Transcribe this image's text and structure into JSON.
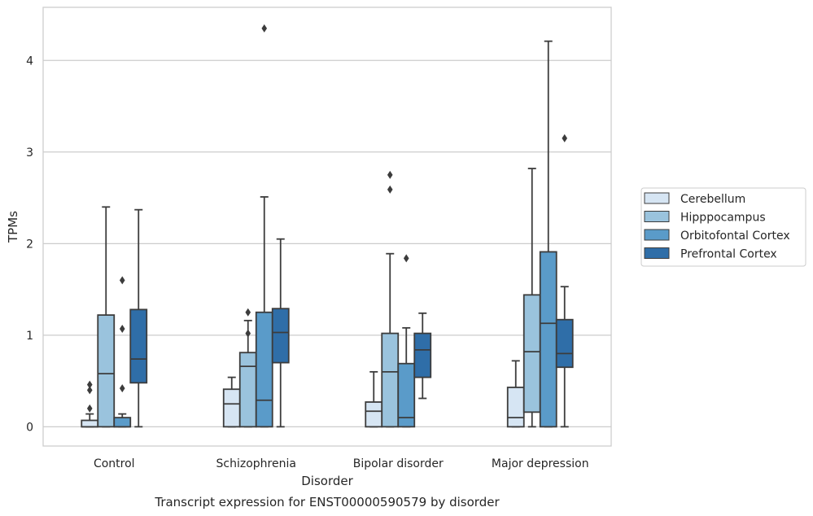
{
  "chart_data": {
    "type": "box",
    "xlabel": "Disorder",
    "ylabel": "TPMs",
    "caption": "Transcript expression for ENST00000590579 by disorder",
    "ylim": [
      -0.21,
      4.58
    ],
    "yticks": [
      0,
      1,
      2,
      3,
      4
    ],
    "grid": true,
    "legend_position": "right",
    "categories": [
      "Control",
      "Schizophrenia",
      "Bipolar disorder",
      "Major depression"
    ],
    "series": [
      {
        "name": "Cerebellum",
        "color": "#d6e5f3",
        "boxes": [
          {
            "whislo": 0,
            "q1": 0,
            "med": 0,
            "q3": 0.07,
            "whishi": 0.14,
            "fliers": [
              0.2,
              0.4,
              0.46
            ]
          },
          {
            "whislo": 0,
            "q1": 0,
            "med": 0.25,
            "q3": 0.41,
            "whishi": 0.54,
            "fliers": []
          },
          {
            "whislo": 0,
            "q1": 0,
            "med": 0.17,
            "q3": 0.27,
            "whishi": 0.6,
            "fliers": []
          },
          {
            "whislo": 0,
            "q1": 0,
            "med": 0.1,
            "q3": 0.43,
            "whishi": 0.72,
            "fliers": []
          }
        ]
      },
      {
        "name": "Hipppocampus",
        "color": "#9ac3dd",
        "boxes": [
          {
            "whislo": 0,
            "q1": 0,
            "med": 0.58,
            "q3": 1.22,
            "whishi": 2.4,
            "fliers": []
          },
          {
            "whislo": 0,
            "q1": 0,
            "med": 0.66,
            "q3": 0.81,
            "whishi": 1.16,
            "fliers": [
              1.02,
              1.25
            ]
          },
          {
            "whislo": 0,
            "q1": 0,
            "med": 0.6,
            "q3": 1.02,
            "whishi": 1.89,
            "fliers": [
              2.59,
              2.75
            ]
          },
          {
            "whislo": 0,
            "q1": 0.16,
            "med": 0.82,
            "q3": 1.44,
            "whishi": 2.82,
            "fliers": []
          }
        ]
      },
      {
        "name": "Orbitofontal Cortex",
        "color": "#5a9bc9",
        "boxes": [
          {
            "whislo": 0,
            "q1": 0,
            "med": 0,
            "q3": 0.1,
            "whishi": 0.14,
            "fliers": [
              0.42,
              1.07,
              1.6
            ]
          },
          {
            "whislo": 0,
            "q1": 0,
            "med": 0.29,
            "q3": 1.25,
            "whishi": 2.51,
            "fliers": [
              4.35
            ]
          },
          {
            "whislo": 0,
            "q1": 0,
            "med": 0.1,
            "q3": 0.69,
            "whishi": 1.08,
            "fliers": [
              1.84
            ]
          },
          {
            "whislo": 0,
            "q1": 0,
            "med": 1.13,
            "q3": 1.91,
            "whishi": 4.21,
            "fliers": []
          }
        ]
      },
      {
        "name": "Prefrontal Cortex",
        "color": "#2f6ea8",
        "boxes": [
          {
            "whislo": 0,
            "q1": 0.48,
            "med": 0.74,
            "q3": 1.28,
            "whishi": 2.37,
            "fliers": []
          },
          {
            "whislo": 0,
            "q1": 0.7,
            "med": 1.03,
            "q3": 1.29,
            "whishi": 2.05,
            "fliers": []
          },
          {
            "whislo": 0.31,
            "q1": 0.54,
            "med": 0.84,
            "q3": 1.02,
            "whishi": 1.24,
            "fliers": []
          },
          {
            "whislo": 0,
            "q1": 0.65,
            "med": 0.8,
            "q3": 1.17,
            "whishi": 1.53,
            "fliers": [
              3.15
            ]
          }
        ]
      }
    ]
  }
}
